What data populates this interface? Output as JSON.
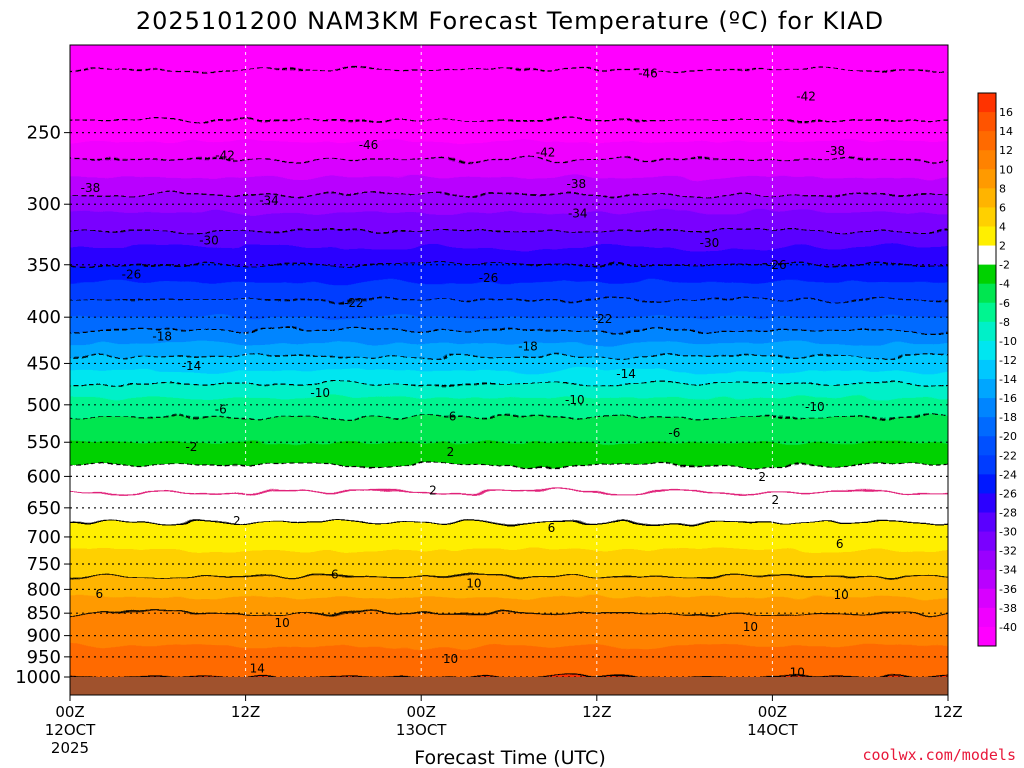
{
  "chart_data": {
    "type": "heatmap",
    "title": "2025101200 NAM3KM Forecast Temperature (ºC) for KIAD",
    "xlabel": "Forecast Time (UTC)",
    "ylabel": "",
    "y_axis": {
      "unit": "hPa",
      "range": [
        1000,
        200
      ],
      "tick_values": [
        1000,
        950,
        900,
        850,
        800,
        750,
        700,
        650,
        600,
        550,
        500,
        450,
        400,
        350,
        300,
        250
      ],
      "tick_labels": [
        "1000",
        "950",
        "900",
        "850",
        "800",
        "750",
        "700",
        "650",
        "600",
        "550",
        "500",
        "450",
        "400",
        "350",
        "300",
        "250"
      ]
    },
    "x_axis": {
      "unit": "forecast hour",
      "range": [
        0,
        60
      ],
      "ticks": [
        {
          "hour": 0,
          "line1": "00Z",
          "line2": "12OCT",
          "line3": "2025"
        },
        {
          "hour": 12,
          "line1": "12Z",
          "line2": "",
          "line3": ""
        },
        {
          "hour": 24,
          "line1": "00Z",
          "line2": "13OCT",
          "line3": ""
        },
        {
          "hour": 36,
          "line1": "12Z",
          "line2": "",
          "line3": ""
        },
        {
          "hour": 48,
          "line1": "00Z",
          "line2": "14OCT",
          "line3": ""
        },
        {
          "hour": 60,
          "line1": "12Z",
          "line2": "",
          "line3": ""
        }
      ]
    },
    "colorbar": {
      "labels": [
        "16",
        "14",
        "12",
        "10",
        "8",
        "6",
        "4",
        "2",
        "-2",
        "-4",
        "-6",
        "-8",
        "-10",
        "-12",
        "-14",
        "-16",
        "-18",
        "-20",
        "-22",
        "-24",
        "-26",
        "-28",
        "-30",
        "-32",
        "-34",
        "-36",
        "-38",
        "-40"
      ],
      "bin_colors": [
        "#ff3300",
        "#ff5400",
        "#ff6a00",
        "#ff8200",
        "#ff9a00",
        "#ffb400",
        "#ffd000",
        "#ffef00",
        "#ffffff",
        "#00d200",
        "#00e650",
        "#00f590",
        "#00f0c8",
        "#00e6f0",
        "#00c8ff",
        "#00a6ff",
        "#0085ff",
        "#006aff",
        "#0050ff",
        "#003cff",
        "#0018ff",
        "#2c00ff",
        "#5a00ff",
        "#7a00ff",
        "#9a00ff",
        "#b900ff",
        "#d800ff",
        "#f000ff",
        "#ff00ff"
      ]
    },
    "temperature_profile_start": [
      {
        "p": 1000,
        "t": 14
      },
      {
        "p": 950,
        "t": 13
      },
      {
        "p": 900,
        "t": 11
      },
      {
        "p": 850,
        "t": 10
      },
      {
        "p": 800,
        "t": 7
      },
      {
        "p": 750,
        "t": 5
      },
      {
        "p": 700,
        "t": 3
      },
      {
        "p": 650,
        "t": 1
      },
      {
        "p": 600,
        "t": -1
      },
      {
        "p": 550,
        "t": -4
      },
      {
        "p": 500,
        "t": -7
      },
      {
        "p": 450,
        "t": -13
      },
      {
        "p": 400,
        "t": -20
      },
      {
        "p": 350,
        "t": -26
      },
      {
        "p": 300,
        "t": -33
      },
      {
        "p": 250,
        "t": -41
      },
      {
        "p": 200,
        "t": -48
      }
    ],
    "contour_labels": [
      {
        "text": "-46",
        "hour": 39.5,
        "p": 215
      },
      {
        "text": "-42",
        "hour": 50.3,
        "p": 228
      },
      {
        "text": "-46",
        "hour": 20.4,
        "p": 258
      },
      {
        "text": "-42",
        "hour": 10.6,
        "p": 265
      },
      {
        "text": "-42",
        "hour": 32.5,
        "p": 263
      },
      {
        "text": "-38",
        "hour": 52.3,
        "p": 262
      },
      {
        "text": "-38",
        "hour": 1.4,
        "p": 288
      },
      {
        "text": "-38",
        "hour": 34.6,
        "p": 285
      },
      {
        "text": "-34",
        "hour": 13.6,
        "p": 297
      },
      {
        "text": "-34",
        "hour": 34.7,
        "p": 307
      },
      {
        "text": "-30",
        "hour": 9.5,
        "p": 329
      },
      {
        "text": "-30",
        "hour": 43.7,
        "p": 331
      },
      {
        "text": "-26",
        "hour": 4.2,
        "p": 359
      },
      {
        "text": "-26",
        "hour": 28.6,
        "p": 362
      },
      {
        "text": "-26",
        "hour": 48.3,
        "p": 350
      },
      {
        "text": "-22",
        "hour": 19.4,
        "p": 386
      },
      {
        "text": "-22",
        "hour": 36.4,
        "p": 402
      },
      {
        "text": "-18",
        "hour": 6.3,
        "p": 420
      },
      {
        "text": "-18",
        "hour": 31.3,
        "p": 431
      },
      {
        "text": "-14",
        "hour": 8.3,
        "p": 453
      },
      {
        "text": "-14",
        "hour": 38.0,
        "p": 462
      },
      {
        "text": "-10",
        "hour": 17.1,
        "p": 485
      },
      {
        "text": "-10",
        "hour": 34.5,
        "p": 494
      },
      {
        "text": "-10",
        "hour": 50.9,
        "p": 503
      },
      {
        "text": "-6",
        "hour": 10.3,
        "p": 506
      },
      {
        "text": "-6",
        "hour": 26.0,
        "p": 515
      },
      {
        "text": "-6",
        "hour": 41.3,
        "p": 537
      },
      {
        "text": "-2",
        "hour": 8.3,
        "p": 557
      },
      {
        "text": "2",
        "hour": 26.0,
        "p": 564
      },
      {
        "text": "2",
        "hour": 47.3,
        "p": 601
      },
      {
        "text": "2",
        "hour": 24.8,
        "p": 622
      },
      {
        "text": "2",
        "hour": 48.2,
        "p": 637
      },
      {
        "text": "2",
        "hour": 11.4,
        "p": 672
      },
      {
        "text": "6",
        "hour": 32.9,
        "p": 684
      },
      {
        "text": "6",
        "hour": 52.6,
        "p": 713
      },
      {
        "text": "6",
        "hour": 18.1,
        "p": 770
      },
      {
        "text": "6",
        "hour": 2.0,
        "p": 809
      },
      {
        "text": "10",
        "hour": 27.6,
        "p": 788
      },
      {
        "text": "10",
        "hour": 52.7,
        "p": 812
      },
      {
        "text": "10",
        "hour": 14.5,
        "p": 872
      },
      {
        "text": "10",
        "hour": 46.5,
        "p": 880
      },
      {
        "text": "10",
        "hour": 26.0,
        "p": 955
      },
      {
        "text": "10",
        "hour": 49.7,
        "p": 988
      },
      {
        "text": "14",
        "hour": 12.8,
        "p": 978
      }
    ]
  },
  "credit": "coolwx.com/models",
  "colors": {
    "ground": "#a0522d",
    "credit": "#e8183a",
    "freezing_line": "#e0207a"
  }
}
